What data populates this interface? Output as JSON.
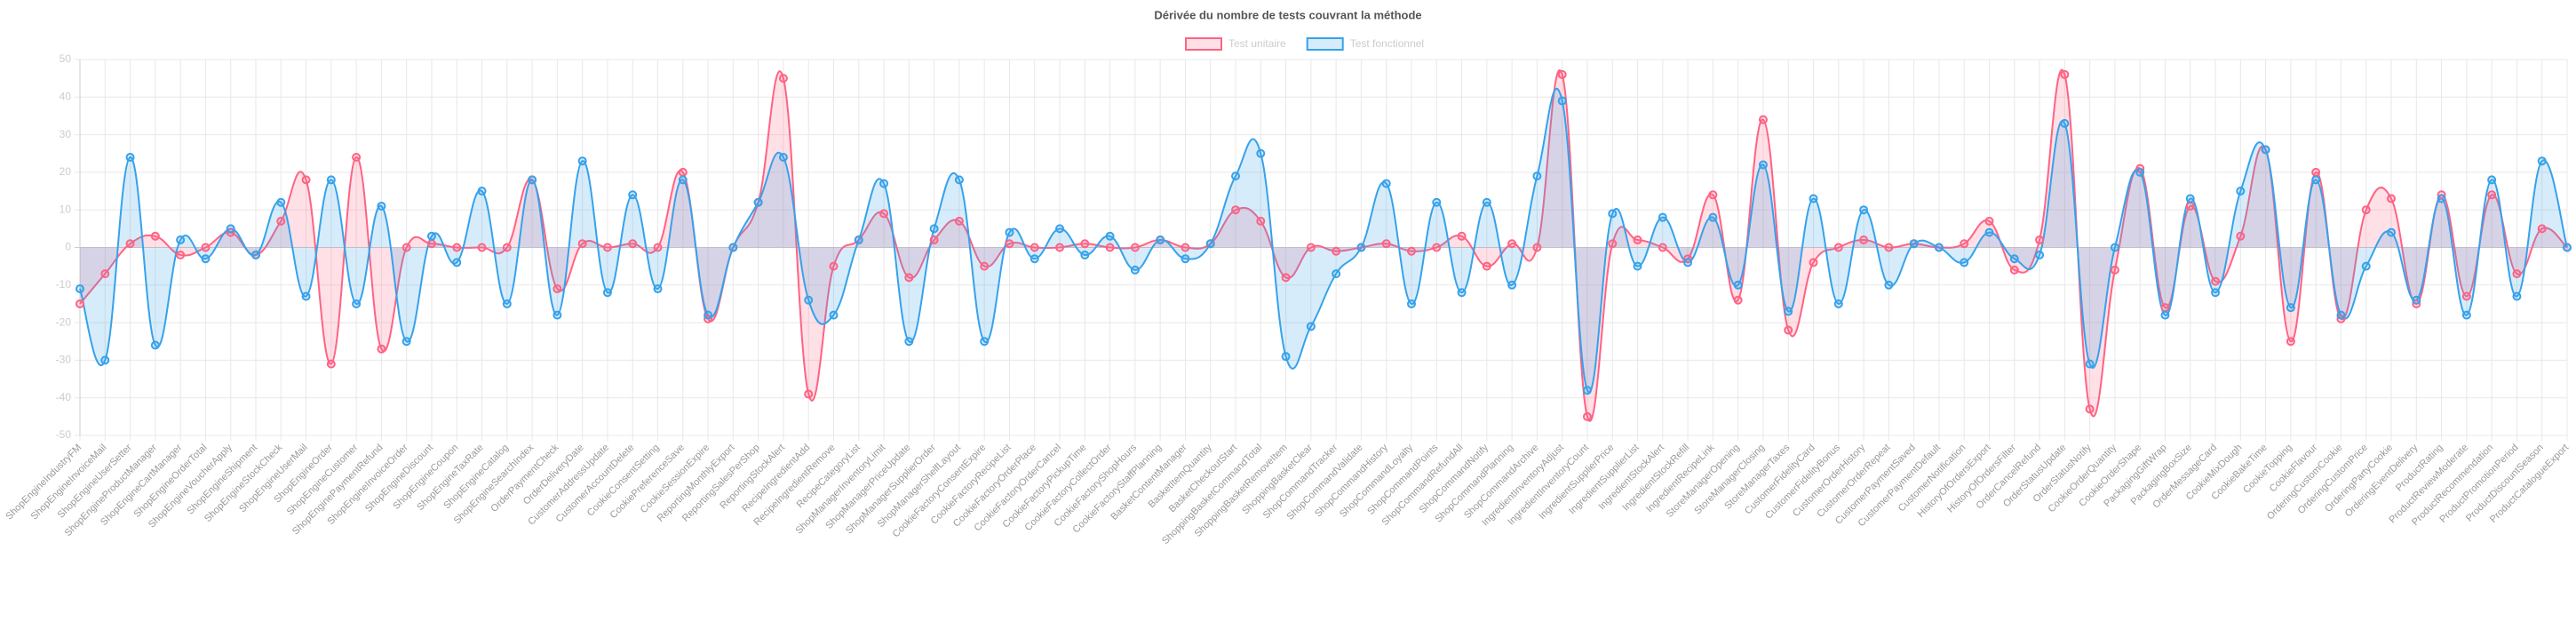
{
  "chart_data": {
    "type": "line",
    "title": "Dérivée du nombre de tests couvrant la méthode",
    "categories": [
      "ShopEngineIndustryFM",
      "ShopEngineInvoiceMail",
      "ShopEngineUserSetter",
      "ShopEngineProductManager",
      "ShopEngineCartManager",
      "ShopEngineOrderTotal",
      "ShopEngineVoucherApply",
      "ShopEngineShipment",
      "ShopEngineStockCheck",
      "ShopEngineUserMail",
      "ShopEngineOrder",
      "ShopEngineCustomer",
      "ShopEnginePaymentRefund",
      "ShopEngineInvoiceOrder",
      "ShopEngineDiscount",
      "ShopEngineCoupon",
      "ShopEngineTaxRate",
      "ShopEngineCatalog",
      "ShopEngineSearchIndex",
      "OrderPaymentCheck",
      "OrderDeliveryDate",
      "CustomerAddressUpdate",
      "CustomerAccountDelete",
      "CookieConsentSetting",
      "CookiePreferenceSave",
      "CookieSessionExpire",
      "ReportingMonthlyExport",
      "ReportingSalesPerShop",
      "ReportingStockAlert",
      "RecipeIngredientAdd",
      "RecipeIngredientRemove",
      "RecipeCategoryList",
      "ShopManagerInventoryLimit",
      "ShopManagerPriceUpdate",
      "ShopManagerSupplierOrder",
      "ShopManagerShelfLayout",
      "CookieFactoryConsentExpire",
      "CookieFactoryRecipeList",
      "CookieFactoryOrderPlace",
      "CookieFactoryOrderCancel",
      "CookieFactoryPickupTime",
      "CookieFactoryCollectOrder",
      "CookieFactoryShopHours",
      "CookieFactoryStaffPlanning",
      "BasketContentManager",
      "BasketItemQuantity",
      "BasketCheckoutStart",
      "ShoppingBasketCommandTotal",
      "ShoppingBasketRemoveItem",
      "ShoppingBasketClear",
      "ShopCommandTracker",
      "ShopCommandValidate",
      "ShopCommandHistory",
      "ShopCommandLoyalty",
      "ShopCommandPoints",
      "ShopCommandRefundAll",
      "ShopCommandNotify",
      "ShopCommandPlanning",
      "ShopCommandArchive",
      "IngredientInventoryAdjust",
      "IngredientInventoryCount",
      "IngredientSupplierPrice",
      "IngredientSupplierList",
      "IngredientStockAlert",
      "IngredientStockRefill",
      "IngredientRecipeLink",
      "StoreManagerOpening",
      "StoreManagerClosing",
      "StoreManagerTaxes",
      "CustomerFidelityCard",
      "CustomerFidelityBonus",
      "CustomerOrderHistory",
      "CustomerOrderRepeat",
      "CustomerPaymentSaved",
      "CustomerPaymentDefault",
      "CustomerNotification",
      "HistoryOfOrdersExport",
      "HistoryOfOrdersFilter",
      "OrderCancelRefund",
      "OrderStatusUpdate",
      "OrderStatusNotify",
      "CookieOrderQuantity",
      "CookieOrderShape",
      "PackagingGiftWrap",
      "PackagingBoxSize",
      "OrderMessageCard",
      "CookieMixDough",
      "CookieBakeTime",
      "CookieTopping",
      "CookieFlavour",
      "OrderingCustomCookie",
      "OrderingCustomPrice",
      "OrderingPartyCookie",
      "OrderingEventDelivery",
      "ProductRating",
      "ProductReviewModerate",
      "ProductRecommendation",
      "ProductPromotionPeriod",
      "ProductDiscountSeason",
      "ProductCatalogueExport"
    ],
    "series": [
      {
        "name": "Test unitaire",
        "color": "#ff6384",
        "fill": "rgba(255,99,132,0.2)",
        "values": [
          -15,
          -7,
          1,
          3,
          -2,
          0,
          4,
          -2,
          7,
          18,
          -31,
          24,
          -27,
          0,
          1,
          0,
          0,
          0,
          18,
          -11,
          1,
          0,
          1,
          0,
          20,
          -19,
          0,
          12,
          45,
          -39,
          -5,
          2,
          9,
          -8,
          2,
          7,
          -5,
          1,
          0,
          0,
          1,
          0,
          0,
          2,
          0,
          1,
          10,
          7,
          -8,
          0,
          -1,
          0,
          1,
          -1,
          0,
          3,
          -5,
          1,
          0,
          46,
          -45,
          1,
          2,
          0,
          -3,
          14,
          -14,
          34,
          -22,
          -4,
          0,
          2,
          0,
          1,
          0,
          1,
          7,
          -6,
          2,
          46,
          -43,
          -6,
          21,
          -16,
          11,
          -9,
          3,
          26,
          -25,
          20,
          -19,
          10,
          13,
          -15,
          14,
          -13,
          14,
          -7,
          5,
          0
        ]
      },
      {
        "name": "Test fonctionnel",
        "color": "#36a2eb",
        "fill": "rgba(54,162,235,0.2)",
        "values": [
          -11,
          -30,
          24,
          -26,
          2,
          -3,
          5,
          -2,
          12,
          -13,
          18,
          -15,
          11,
          -25,
          3,
          -4,
          15,
          -15,
          18,
          -18,
          23,
          -12,
          14,
          -11,
          18,
          -18,
          0,
          12,
          24,
          -14,
          -18,
          2,
          17,
          -25,
          5,
          18,
          -25,
          4,
          -3,
          5,
          -2,
          3,
          -6,
          2,
          -3,
          1,
          19,
          25,
          -29,
          -21,
          -7,
          0,
          17,
          -15,
          12,
          -12,
          12,
          -10,
          19,
          39,
          -38,
          9,
          -5,
          8,
          -4,
          8,
          -10,
          22,
          -17,
          13,
          -15,
          10,
          -10,
          1,
          0,
          -4,
          4,
          -3,
          -2,
          33,
          -31,
          0,
          20,
          -18,
          13,
          -12,
          15,
          26,
          -16,
          18,
          -18,
          -5,
          4,
          -14,
          13,
          -18,
          18,
          -13,
          23,
          0
        ]
      }
    ],
    "ylim": [
      -50,
      50
    ],
    "yticks": [
      -50,
      -40,
      -30,
      -20,
      -10,
      0,
      10,
      20,
      30,
      40,
      50
    ],
    "grid": true,
    "legend": "top"
  }
}
